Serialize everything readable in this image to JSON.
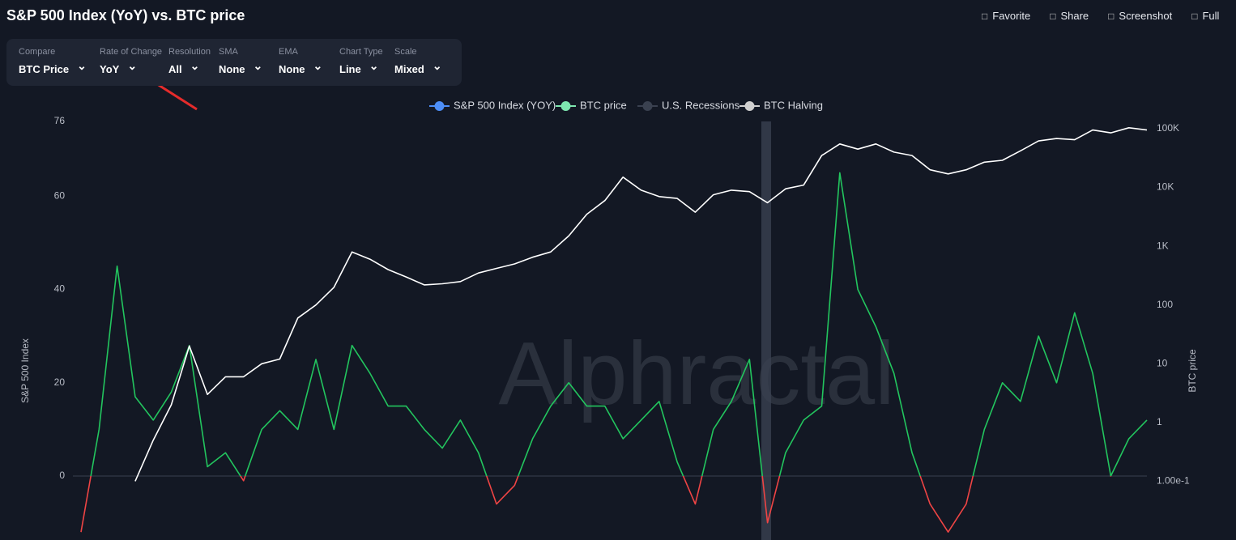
{
  "header": {
    "title": "S&P 500 Index (YoY) vs. BTC price",
    "actions": [
      "Favorite",
      "Share",
      "Screenshot",
      "Full"
    ]
  },
  "controls": [
    {
      "label": "Compare",
      "value": "BTC Price"
    },
    {
      "label": "Rate of Change",
      "value": "YoY"
    },
    {
      "label": "Resolution",
      "value": "All"
    },
    {
      "label": "SMA",
      "value": "None"
    },
    {
      "label": "EMA",
      "value": "None"
    },
    {
      "label": "Chart Type",
      "value": "Line"
    },
    {
      "label": "Scale",
      "value": "Mixed"
    }
  ],
  "chart_data": {
    "type": "line",
    "watermark": "Alphractal",
    "y_label": "S&P 500 Index",
    "y2_label": "BTC price",
    "categories": [
      null,
      null,
      null,
      null,
      null,
      null,
      null,
      null,
      null,
      null,
      null,
      null,
      null,
      null,
      null,
      null,
      null,
      null,
      null,
      null,
      null,
      null,
      null,
      null,
      null,
      null,
      null,
      null,
      null,
      null,
      null,
      null,
      null,
      null,
      null,
      null,
      null,
      null,
      null,
      null,
      null,
      null,
      null,
      null,
      null,
      null,
      null,
      null,
      null,
      null,
      null,
      null,
      null,
      null,
      null,
      null,
      null,
      null,
      null,
      null
    ],
    "series": [
      {
        "name": "S&P 500 Index (YOY)",
        "color": "#4d8ef7",
        "positive_color": "#22c55e",
        "negative_color": "#ef4444",
        "axis": "y",
        "values": [
          -12,
          10,
          45,
          17,
          12,
          18,
          28,
          2,
          5,
          -1,
          10,
          14,
          10,
          25,
          10,
          28,
          22,
          15,
          15,
          10,
          6,
          12,
          5,
          -6,
          -2,
          8,
          15,
          20,
          15,
          15,
          8,
          12,
          16,
          3,
          -6,
          10,
          16,
          25,
          -10,
          5,
          12,
          15,
          65,
          40,
          32,
          22,
          5,
          -6,
          -12,
          -6,
          10,
          20,
          16,
          30,
          20,
          35,
          22,
          0,
          8,
          12
        ]
      },
      {
        "name": "BTC price",
        "color": "#7ee8b0",
        "line_color": "#ffffff",
        "axis": "y2",
        "values": [
          null,
          null,
          null,
          0.1,
          0.5,
          2,
          20,
          3,
          6,
          6,
          10,
          12,
          60,
          100,
          200,
          800,
          600,
          400,
          300,
          220,
          230,
          250,
          350,
          420,
          500,
          650,
          800,
          1500,
          3500,
          6000,
          15000,
          9000,
          7000,
          6500,
          3800,
          7500,
          9000,
          8500,
          5500,
          9500,
          11000,
          35000,
          55000,
          45000,
          55000,
          40000,
          35000,
          20000,
          17000,
          20000,
          27000,
          29000,
          42000,
          62000,
          68000,
          65000,
          95000,
          85000,
          104000,
          95000
        ]
      }
    ],
    "legend_extra": [
      {
        "name": "U.S. Recessions",
        "color": "#3a4150"
      },
      {
        "name": "BTC Halving",
        "color": "#cfcfcf"
      }
    ],
    "ylim": [
      -13.7,
      76
    ],
    "yticks": [
      0,
      20,
      40,
      60,
      76
    ],
    "y2lim": [
      0.01,
      133000
    ],
    "y2_log": true,
    "y2ticks": [
      {
        "value": 100000,
        "label": "100K"
      },
      {
        "value": 10000,
        "label": "10K"
      },
      {
        "value": 1000,
        "label": "1K"
      },
      100,
      10,
      1,
      {
        "value": 0.1,
        "label": "1.00e-1"
      }
    ],
    "grid": false
  }
}
